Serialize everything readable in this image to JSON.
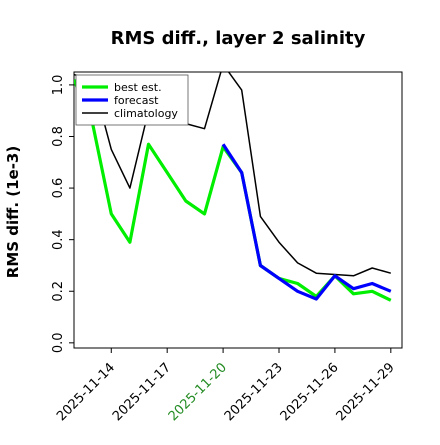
{
  "chart_data": {
    "type": "line",
    "title": "RMS diff., layer 2 salinity",
    "xlabel": "",
    "ylabel": "RMS diff. (1e-3)",
    "ylim": [
      -0.02,
      1.05
    ],
    "xlim": [
      -1.0,
      16.6
    ],
    "yticks": [
      0.0,
      0.2,
      0.4,
      0.6,
      0.8,
      1.0
    ],
    "ytick_labels": [
      "0.0",
      "0.2",
      "0.4",
      "0.6",
      "0.8",
      "1.0"
    ],
    "xticks": [
      {
        "x": 1,
        "label": "2025-11-14",
        "color": "#000000"
      },
      {
        "x": 4,
        "label": "2025-11-17",
        "color": "#000000"
      },
      {
        "x": 7,
        "label": "2025-11-20",
        "color": "#228b22"
      },
      {
        "x": 10,
        "label": "2025-11-23",
        "color": "#000000"
      },
      {
        "x": 13,
        "label": "2025-11-26",
        "color": "#000000"
      },
      {
        "x": 16,
        "label": "2025-11-29",
        "color": "#000000"
      }
    ],
    "grid": false,
    "legend_position": "top-left",
    "series": [
      {
        "name": "best est.",
        "color": "#00ee00",
        "x": [
          -1,
          0,
          1,
          2,
          3,
          4,
          5,
          6,
          7,
          8,
          9,
          10,
          11,
          12,
          13,
          14,
          15,
          16
        ],
        "values": [
          1.02,
          0.85,
          0.5,
          0.39,
          0.77,
          0.66,
          0.55,
          0.5,
          0.76,
          0.66,
          0.3,
          0.25,
          0.23,
          0.18,
          0.26,
          0.19,
          0.2,
          0.165
        ]
      },
      {
        "name": "forecast",
        "color": "#0000ff",
        "x": [
          7,
          8,
          9,
          10,
          11,
          12,
          13,
          14,
          15,
          16
        ],
        "values": [
          0.77,
          0.66,
          0.3,
          0.25,
          0.2,
          0.17,
          0.26,
          0.21,
          0.23,
          0.2
        ]
      },
      {
        "name": "climatology",
        "color": "#000000",
        "x": [
          -1,
          0,
          1,
          2,
          3,
          4,
          5,
          6,
          7,
          8,
          9,
          10,
          11,
          12,
          13,
          14,
          15,
          16
        ],
        "values": [
          1.04,
          1.02,
          0.75,
          0.6,
          0.9,
          0.9,
          0.85,
          0.83,
          1.08,
          0.98,
          0.49,
          0.39,
          0.31,
          0.27,
          0.265,
          0.26,
          0.29,
          0.27
        ]
      }
    ]
  }
}
